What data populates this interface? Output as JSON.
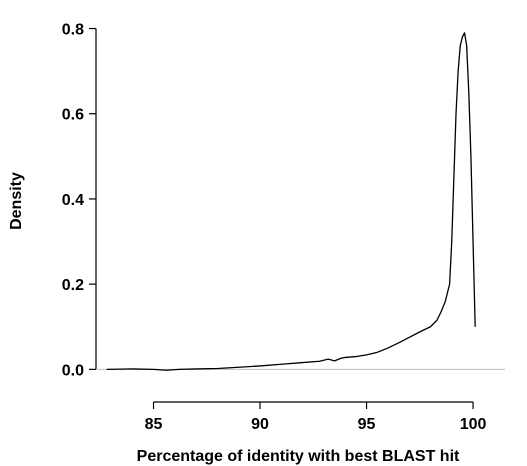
{
  "chart_data": {
    "type": "line",
    "title": "",
    "xlabel": "Percentage of identity with best BLAST hit",
    "ylabel": "Density",
    "xlim": [
      82.3,
      101.5
    ],
    "ylim": [
      -0.032,
      0.82
    ],
    "xticks": [
      85,
      90,
      95,
      100
    ],
    "xtick_labels": [
      "85",
      "90",
      "95",
      "100"
    ],
    "yticks": [
      0.0,
      0.2,
      0.4,
      0.6,
      0.8
    ],
    "ytick_labels": [
      "0.0",
      "0.2",
      "0.4",
      "0.6",
      "0.8"
    ],
    "grid": false,
    "legend": "none",
    "baseline": 0,
    "colors": {
      "line": "#000000",
      "baseline": "#bfbfbf",
      "axes": "#000000"
    },
    "series": [
      {
        "x": [
          82.8,
          84.0,
          85.0,
          85.6,
          86.2,
          87.0,
          88.0,
          89.0,
          90.0,
          91.0,
          92.0,
          92.8,
          93.2,
          93.5,
          93.8,
          94.0,
          94.5,
          95.0,
          95.5,
          96.0,
          96.5,
          97.0,
          97.5,
          98.0,
          98.3,
          98.5,
          98.7,
          98.9,
          99.0,
          99.1,
          99.2,
          99.3,
          99.4,
          99.5,
          99.6,
          99.7,
          99.8,
          99.9,
          100.0,
          100.1
        ],
        "y": [
          0.0,
          0.001,
          0.0,
          -0.002,
          0.0,
          0.001,
          0.002,
          0.005,
          0.008,
          0.012,
          0.016,
          0.019,
          0.024,
          0.02,
          0.026,
          0.028,
          0.03,
          0.034,
          0.04,
          0.05,
          0.062,
          0.075,
          0.088,
          0.1,
          0.115,
          0.135,
          0.16,
          0.2,
          0.3,
          0.45,
          0.6,
          0.7,
          0.76,
          0.78,
          0.79,
          0.76,
          0.65,
          0.5,
          0.3,
          0.1
        ]
      }
    ]
  }
}
